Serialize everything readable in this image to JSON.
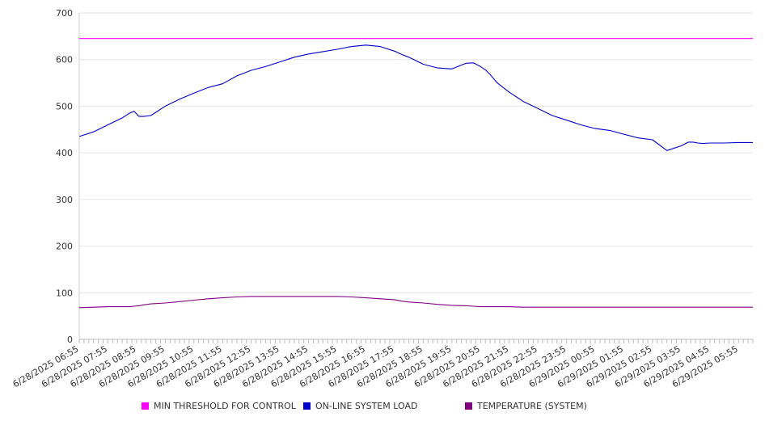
{
  "chart_data": {
    "type": "line",
    "title": "",
    "xlabel": "",
    "ylabel": "",
    "ylim": [
      0,
      700
    ],
    "yticks": [
      "0",
      "100",
      "200",
      "300",
      "400",
      "500",
      "600",
      "700"
    ],
    "grid": "horizontal",
    "legend_position": "bottom",
    "x_tick_labels": [
      "6/28/2025 06:55",
      "6/28/2025 07:55",
      "6/28/2025 08:55",
      "6/28/2025 09:55",
      "6/28/2025 10:55",
      "6/28/2025 11:55",
      "6/28/2025 12:55",
      "6/28/2025 13:55",
      "6/28/2025 14:55",
      "6/28/2025 15:55",
      "6/28/2025 16:55",
      "6/28/2025 17:55",
      "6/28/2025 18:55",
      "6/28/2025 19:55",
      "6/28/2025 20:55",
      "6/28/2025 21:55",
      "6/28/2025 22:55",
      "6/28/2025 23:55",
      "6/29/2025 00:55",
      "6/29/2025 01:55",
      "6/29/2025 02:55",
      "6/29/2025 03:55",
      "6/29/2025 04:55",
      "6/29/2025 05:55"
    ],
    "x": [
      "6/28/2025 06:55",
      "6/28/2025 07:25",
      "6/28/2025 07:55",
      "6/28/2025 08:25",
      "6/28/2025 08:40",
      "6/28/2025 08:50",
      "6/28/2025 09:00",
      "6/28/2025 09:10",
      "6/28/2025 09:25",
      "6/28/2025 09:55",
      "6/28/2025 10:25",
      "6/28/2025 10:55",
      "6/28/2025 11:25",
      "6/28/2025 11:55",
      "6/28/2025 12:25",
      "6/28/2025 12:55",
      "6/28/2025 13:25",
      "6/28/2025 13:55",
      "6/28/2025 14:25",
      "6/28/2025 14:55",
      "6/28/2025 15:25",
      "6/28/2025 15:55",
      "6/28/2025 16:25",
      "6/28/2025 16:55",
      "6/28/2025 17:25",
      "6/28/2025 17:55",
      "6/28/2025 18:10",
      "6/28/2025 18:25",
      "6/28/2025 18:55",
      "6/28/2025 19:25",
      "6/28/2025 19:55",
      "6/28/2025 20:25",
      "6/28/2025 20:40",
      "6/28/2025 20:55",
      "6/28/2025 21:05",
      "6/28/2025 21:15",
      "6/28/2025 21:30",
      "6/28/2025 21:55",
      "6/28/2025 22:25",
      "6/28/2025 22:55",
      "6/28/2025 23:25",
      "6/28/2025 23:55",
      "6/29/2025 00:25",
      "6/29/2025 00:55",
      "6/29/2025 01:25",
      "6/29/2025 01:55",
      "6/29/2025 02:25",
      "6/29/2025 02:55",
      "6/29/2025 03:25",
      "6/29/2025 03:55",
      "6/29/2025 04:10",
      "6/29/2025 04:20",
      "6/29/2025 04:30",
      "6/29/2025 04:40",
      "6/29/2025 04:55",
      "6/29/2025 05:25",
      "6/29/2025 05:55",
      "6/29/2025 06:25"
    ],
    "series": [
      {
        "name": "MIN THRESHOLD FOR CONTROL",
        "color": "#ff00ff",
        "values": [
          645,
          645,
          645,
          645,
          645,
          645,
          645,
          645,
          645,
          645,
          645,
          645,
          645,
          645,
          645,
          645,
          645,
          645,
          645,
          645,
          645,
          645,
          645,
          645,
          645,
          645,
          645,
          645,
          645,
          645,
          645,
          645,
          645,
          645,
          645,
          645,
          645,
          645,
          645,
          645,
          645,
          645,
          645,
          645,
          645,
          645,
          645,
          645,
          645,
          645,
          645,
          645,
          645,
          645,
          645,
          645,
          645,
          645
        ]
      },
      {
        "name": "ON-LINE SYSTEM LOAD",
        "color": "#0000cc",
        "values": [
          435,
          445,
          460,
          475,
          485,
          489,
          478,
          478,
          480,
          500,
          515,
          528,
          540,
          548,
          565,
          577,
          585,
          595,
          605,
          612,
          617,
          622,
          628,
          631,
          628,
          618,
          611,
          605,
          590,
          582,
          580,
          592,
          593,
          585,
          578,
          568,
          550,
          530,
          510,
          495,
          480,
          470,
          460,
          452,
          448,
          440,
          432,
          428,
          405,
          415,
          423,
          423,
          421,
          420,
          421,
          421,
          422,
          422
        ]
      },
      {
        "name": "TEMPERATURE (SYSTEM)",
        "color": "#800080",
        "values": [
          68,
          69,
          70,
          70,
          70,
          71,
          72,
          74,
          76,
          78,
          81,
          84,
          87,
          89,
          91,
          92,
          92,
          92,
          92,
          92,
          92,
          92,
          91,
          89,
          87,
          85,
          82,
          80,
          78,
          75,
          73,
          72,
          71,
          70,
          70,
          70,
          70,
          70,
          69,
          69,
          69,
          69,
          69,
          69,
          69,
          69,
          69,
          69,
          69,
          69,
          69,
          69,
          69,
          69,
          69,
          69,
          69,
          69
        ]
      }
    ]
  }
}
